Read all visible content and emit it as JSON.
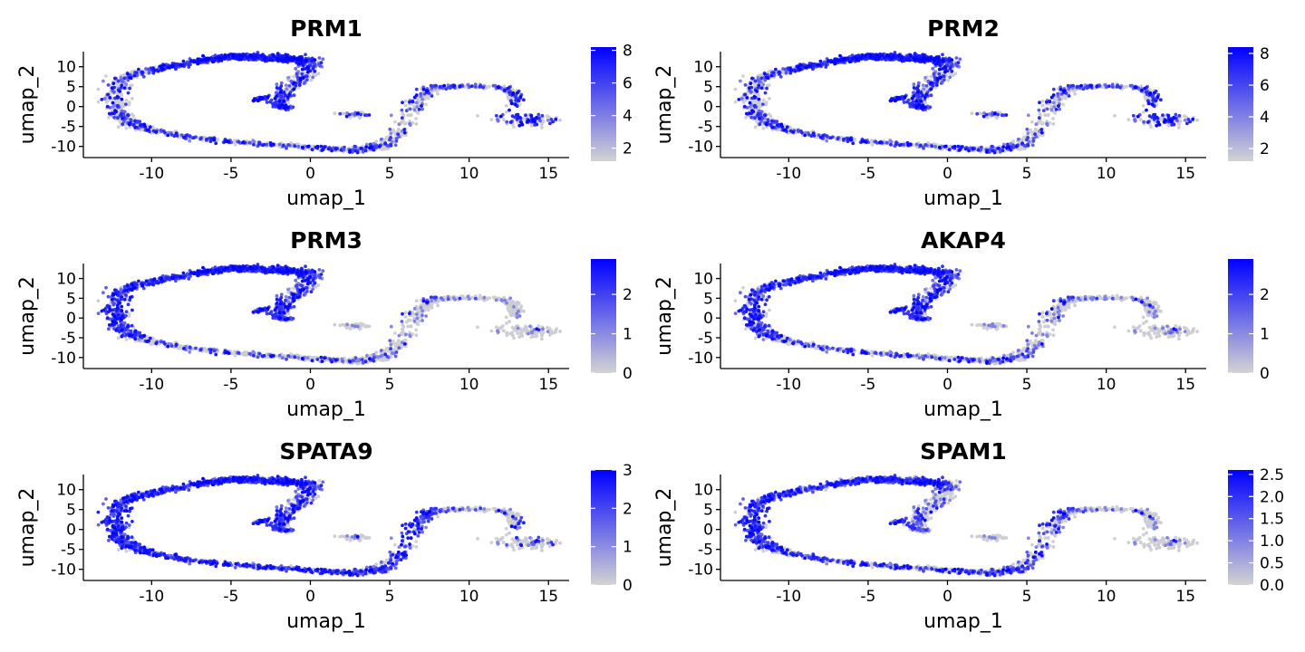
{
  "chart_data": [
    {
      "type": "scatter",
      "title": "PRM1",
      "xlabel": "umap_1",
      "ylabel": "umap_2",
      "xticks": [
        "-10",
        "-5",
        "0",
        "5",
        "10",
        "15"
      ],
      "yticks": [
        "10",
        "5",
        "0",
        "-5",
        "-10"
      ],
      "xlim": [
        -14.3,
        16.3
      ],
      "ylim": [
        -12.8,
        13.8
      ],
      "legend": {
        "type": "colorbar",
        "position": "right",
        "min": 1.2,
        "max": 8.2,
        "ticks": [
          "2",
          "4",
          "6",
          "8"
        ],
        "tick_values": [
          2,
          4,
          6,
          8
        ]
      },
      "colors": {
        "low": "#d3d3d3",
        "high": "#0000ff"
      },
      "profile": {
        "spiral_top_right": 1.0,
        "spiral_left": 0.35,
        "spiral_bottom": 0.3,
        "tail": 0.5,
        "hook": 1.0,
        "bridge": 0.4,
        "right_cluster": 0.45,
        "noise": 0.1
      }
    },
    {
      "type": "scatter",
      "title": "PRM2",
      "xlabel": "umap_1",
      "ylabel": "umap_2",
      "xticks": [
        "-10",
        "-5",
        "0",
        "5",
        "10",
        "15"
      ],
      "yticks": [
        "10",
        "5",
        "0",
        "-5",
        "-10"
      ],
      "xlim": [
        -14.3,
        16.3
      ],
      "ylim": [
        -12.8,
        13.8
      ],
      "legend": {
        "type": "colorbar",
        "position": "right",
        "min": 1.2,
        "max": 8.4,
        "ticks": [
          "2",
          "4",
          "6",
          "8"
        ],
        "tick_values": [
          2,
          4,
          6,
          8
        ]
      },
      "colors": {
        "low": "#d3d3d3",
        "high": "#0000ff"
      },
      "profile": {
        "spiral_top_right": 1.0,
        "spiral_left": 0.35,
        "spiral_bottom": 0.3,
        "tail": 0.5,
        "hook": 1.0,
        "bridge": 0.4,
        "right_cluster": 0.45,
        "noise": 0.1
      }
    },
    {
      "type": "scatter",
      "title": "PRM3",
      "xlabel": "umap_1",
      "ylabel": "umap_2",
      "xticks": [
        "-10",
        "-5",
        "0",
        "5",
        "10",
        "15"
      ],
      "yticks": [
        "10",
        "5",
        "0",
        "-5",
        "-10"
      ],
      "xlim": [
        -14.3,
        16.3
      ],
      "ylim": [
        -12.8,
        13.8
      ],
      "legend": {
        "type": "colorbar",
        "position": "right",
        "min": 0,
        "max": 2.9,
        "ticks": [
          "0",
          "1",
          "2"
        ],
        "tick_values": [
          0,
          1,
          2
        ]
      },
      "colors": {
        "low": "#d3d3d3",
        "high": "#0000ff"
      },
      "profile": {
        "spiral_top_right": 0.85,
        "spiral_left": 0.75,
        "spiral_bottom": 0.15,
        "tail": 0.6,
        "hook": 0.7,
        "bridge": 0.05,
        "right_cluster": 0.02,
        "noise": 0.12
      }
    },
    {
      "type": "scatter",
      "title": "AKAP4",
      "xlabel": "umap_1",
      "ylabel": "umap_2",
      "xticks": [
        "-10",
        "-5",
        "0",
        "5",
        "10",
        "15"
      ],
      "yticks": [
        "10",
        "5",
        "0",
        "-5",
        "-10"
      ],
      "xlim": [
        -14.3,
        16.3
      ],
      "ylim": [
        -12.8,
        13.8
      ],
      "legend": {
        "type": "colorbar",
        "position": "right",
        "min": 0,
        "max": 2.9,
        "ticks": [
          "0",
          "1",
          "2"
        ],
        "tick_values": [
          0,
          1,
          2
        ]
      },
      "colors": {
        "low": "#d3d3d3",
        "high": "#0000ff"
      },
      "profile": {
        "spiral_top_right": 0.8,
        "spiral_left": 0.6,
        "spiral_bottom": 0.2,
        "tail": 0.6,
        "hook": 0.75,
        "bridge": 0.08,
        "right_cluster": 0.05,
        "noise": 0.15
      }
    },
    {
      "type": "scatter",
      "title": "SPATA9",
      "xlabel": "umap_1",
      "ylabel": "umap_2",
      "xticks": [
        "-10",
        "-5",
        "0",
        "5",
        "10",
        "15"
      ],
      "yticks": [
        "10",
        "5",
        "0",
        "-5",
        "-10"
      ],
      "xlim": [
        -14.3,
        16.3
      ],
      "ylim": [
        -12.8,
        13.8
      ],
      "legend": {
        "type": "colorbar",
        "position": "right",
        "min": 0,
        "max": 3.0,
        "ticks": [
          "0",
          "1",
          "2",
          "3"
        ],
        "tick_values": [
          0,
          1,
          2,
          3
        ]
      },
      "colors": {
        "low": "#d3d3d3",
        "high": "#0000ff"
      },
      "profile": {
        "spiral_top_right": 0.75,
        "spiral_left": 0.85,
        "spiral_bottom": 0.65,
        "tail": 0.6,
        "hook": 0.6,
        "bridge": 0.15,
        "right_cluster": 0.12,
        "noise": 0.12
      }
    },
    {
      "type": "scatter",
      "title": "SPAM1",
      "xlabel": "umap_1",
      "ylabel": "umap_2",
      "xticks": [
        "-10",
        "-5",
        "0",
        "5",
        "10",
        "15"
      ],
      "yticks": [
        "10",
        "5",
        "0",
        "-5",
        "-10"
      ],
      "xlim": [
        -14.3,
        16.3
      ],
      "ylim": [
        -12.8,
        13.8
      ],
      "legend": {
        "type": "colorbar",
        "position": "right",
        "min": 0,
        "max": 2.6,
        "ticks": [
          "0.0",
          "0.5",
          "1.0",
          "1.5",
          "2.0",
          "2.5"
        ],
        "tick_values": [
          0,
          0.5,
          1.0,
          1.5,
          2.0,
          2.5
        ]
      },
      "colors": {
        "low": "#d3d3d3",
        "high": "#0000ff"
      },
      "profile": {
        "spiral_top_right": 0.55,
        "spiral_left": 0.75,
        "spiral_bottom": 0.4,
        "tail": 0.2,
        "hook": 0.3,
        "bridge": 0.05,
        "right_cluster": 0.05,
        "noise": 0.12
      }
    }
  ]
}
